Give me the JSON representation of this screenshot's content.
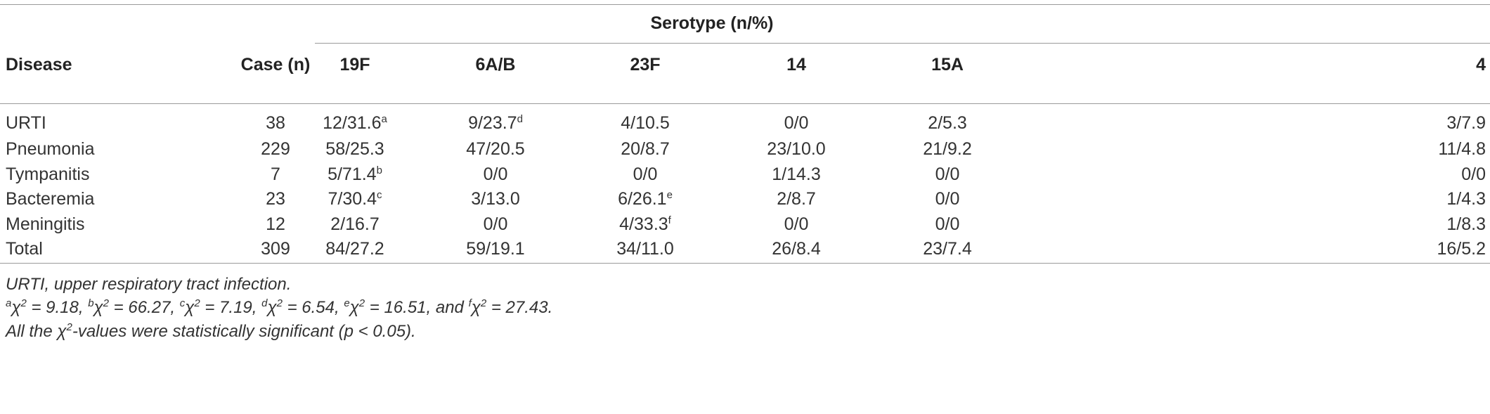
{
  "table": {
    "group_header": "Serotype (n/%)",
    "columns": [
      "Disease",
      "Case (n)",
      "19F",
      "6A/B",
      "23F",
      "14",
      "15A",
      "4"
    ],
    "rows": [
      [
        "URTI",
        38,
        {
          "text": "12/31.6",
          "sup": "a"
        },
        {
          "text": "9/23.7",
          "sup": "d"
        },
        "4/10.5",
        "0/0",
        "2/5.3",
        "3/7.9"
      ],
      [
        "Pneumonia",
        229,
        "58/25.3",
        "47/20.5",
        "20/8.7",
        "23/10.0",
        "21/9.2",
        "11/4.8"
      ],
      [
        "Tympanitis",
        7,
        {
          "text": "5/71.4",
          "sup": "b"
        },
        "0/0",
        "0/0",
        "1/14.3",
        "0/0",
        "0/0"
      ],
      [
        "Bacteremia",
        23,
        {
          "text": "7/30.4",
          "sup": "c"
        },
        "3/13.0",
        {
          "text": "6/26.1",
          "sup": "e"
        },
        "2/8.7",
        "0/0",
        "1/4.3"
      ],
      [
        "Meningitis",
        12,
        "2/16.7",
        "0/0",
        {
          "text": "4/33.3",
          "sup": "f"
        },
        "0/0",
        "0/0",
        "1/8.3"
      ],
      [
        "Total",
        309,
        "84/27.2",
        "59/19.1",
        "34/11.0",
        "26/8.4",
        "23/7.4",
        "16/5.2"
      ]
    ]
  },
  "footnotes": [
    [
      {
        "text": "URTI, upper respiratory tract infection."
      }
    ],
    [
      {
        "sup": "a",
        "text": "χ",
        "exp": "2",
        "after": " = 9.18, "
      },
      {
        "sup": "b",
        "text": "χ",
        "exp": "2",
        "after": " = 66.27, "
      },
      {
        "sup": "c",
        "text": "χ",
        "exp": "2",
        "after": " = 7.19, "
      },
      {
        "sup": "d",
        "text": "χ",
        "exp": "2",
        "after": " = 6.54, "
      },
      {
        "sup": "e",
        "text": "χ",
        "exp": "2",
        "after": " = 16.51, "
      },
      {
        "before": "and ",
        "sup": "f",
        "text": "χ",
        "exp": "2",
        "after": " = 27.43."
      }
    ],
    [
      {
        "text": "All the χ",
        "exp": "2",
        "after": "-values were statistically significant (p < 0.05)."
      }
    ]
  ]
}
